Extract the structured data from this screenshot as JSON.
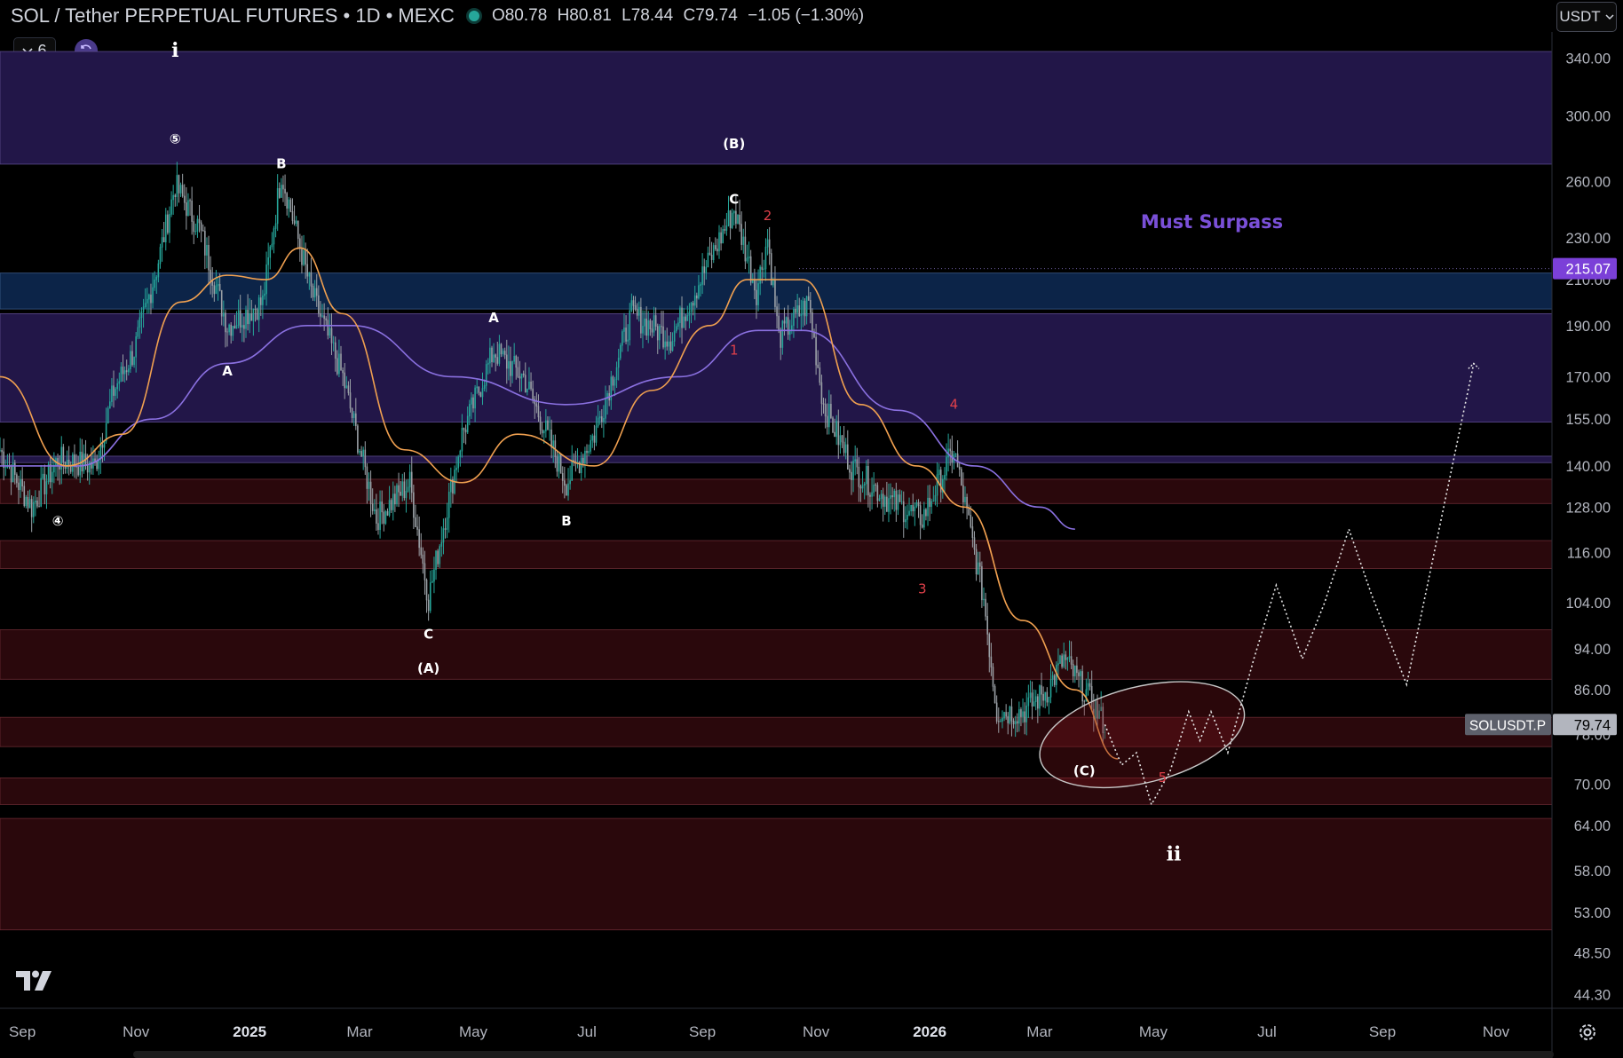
{
  "header": {
    "symbol_title": "SOL / Tether PERPETUAL FUTURES • 1D • MEXC",
    "ohlc": {
      "open": "O80.78",
      "high": "H80.81",
      "low": "L78.44",
      "close": "C79.74",
      "change": "−1.05 (−1.30%)"
    },
    "indicator_count": "6",
    "currency": "USDT"
  },
  "icons": {
    "logo": "tradingview-logo-icon",
    "sync": "sync-icon",
    "settings": "gear-icon",
    "collapse": "chevron-down-icon"
  },
  "colors": {
    "background": "#000000",
    "ma_fast": "#f0a050",
    "ma_slow": "#8a70e0",
    "purple_zone": "#221648",
    "blue_zone": "#0c2448",
    "red_zone": "#2a080c",
    "red_label": "#e0404a",
    "price_tag": "#b2b5be",
    "level_tag": "#7b40d8"
  },
  "chart_data": {
    "type": "candlestick",
    "x_tick_labels": [
      "Sep",
      "Nov",
      "2025",
      "Mar",
      "May",
      "Jul",
      "Sep",
      "Nov",
      "2026",
      "Mar",
      "May",
      "Jul",
      "Sep",
      "Nov"
    ],
    "y_tick_labels": [
      "340.00",
      "300.00",
      "260.00",
      "230.00",
      "210.00",
      "190.00",
      "170.00",
      "155.00",
      "140.00",
      "128.00",
      "116.00",
      "104.00",
      "94.00",
      "86.00",
      "78.00",
      "70.00",
      "64.00",
      "58.00",
      "53.00",
      "48.50",
      "44.30"
    ],
    "y_scale": "log",
    "ylim": [
      43,
      360
    ],
    "xlim": [
      "2024-08-20",
      "2026-12-01"
    ],
    "current_price": {
      "label": "SOLUSDT.P",
      "value": "79.74"
    },
    "level_marker": {
      "value": "215.07",
      "note": "Must Surpass"
    },
    "price_path": [
      [
        "2024-08-20",
        145
      ],
      [
        "2024-09-06",
        128
      ],
      [
        "2024-09-20",
        142
      ],
      [
        "2024-10-10",
        140
      ],
      [
        "2024-10-20",
        165
      ],
      [
        "2024-10-31",
        180
      ],
      [
        "2024-11-12",
        215
      ],
      [
        "2024-11-22",
        258
      ],
      [
        "2024-12-05",
        235
      ],
      [
        "2024-12-20",
        190
      ],
      [
        "2025-01-08",
        200
      ],
      [
        "2025-01-18",
        265
      ],
      [
        "2025-02-03",
        205
      ],
      [
        "2025-02-20",
        170
      ],
      [
        "2025-03-10",
        125
      ],
      [
        "2025-03-28",
        135
      ],
      [
        "2025-04-07",
        105
      ],
      [
        "2025-04-25",
        150
      ],
      [
        "2025-05-12",
        180
      ],
      [
        "2025-05-28",
        170
      ],
      [
        "2025-06-20",
        135
      ],
      [
        "2025-07-05",
        150
      ],
      [
        "2025-07-25",
        195
      ],
      [
        "2025-08-15",
        185
      ],
      [
        "2025-08-28",
        205
      ],
      [
        "2025-09-18",
        245
      ],
      [
        "2025-09-30",
        205
      ],
      [
        "2025-10-06",
        230
      ],
      [
        "2025-10-12",
        185
      ],
      [
        "2025-10-28",
        200
      ],
      [
        "2025-11-05",
        160
      ],
      [
        "2025-11-20",
        140
      ],
      [
        "2025-12-10",
        130
      ],
      [
        "2025-12-28",
        125
      ],
      [
        "2026-01-14",
        145
      ],
      [
        "2026-01-30",
        105
      ],
      [
        "2026-02-06",
        82
      ],
      [
        "2026-02-20",
        82
      ],
      [
        "2026-03-05",
        86
      ],
      [
        "2026-03-14",
        92
      ],
      [
        "2026-03-25",
        86
      ],
      [
        "2026-04-05",
        79.74
      ]
    ],
    "projection_path": [
      [
        "2026-04-05",
        79.74
      ],
      [
        "2026-04-14",
        73
      ],
      [
        "2026-04-22",
        75
      ],
      [
        "2026-04-30",
        67
      ],
      [
        "2026-05-10",
        72
      ],
      [
        "2026-05-20",
        82
      ],
      [
        "2026-05-26",
        77
      ],
      [
        "2026-06-01",
        82
      ],
      [
        "2026-06-10",
        75
      ],
      [
        "2026-06-24",
        92
      ],
      [
        "2026-07-06",
        108
      ],
      [
        "2026-07-20",
        92
      ],
      [
        "2026-08-01",
        104
      ],
      [
        "2026-08-14",
        122
      ],
      [
        "2026-08-26",
        106
      ],
      [
        "2026-09-14",
        87
      ],
      [
        "2026-10-20",
        175
      ]
    ],
    "ma_fast": [
      [
        "2024-08-20",
        170
      ],
      [
        "2024-09-25",
        140
      ],
      [
        "2024-10-25",
        150
      ],
      [
        "2024-11-25",
        200
      ],
      [
        "2024-12-20",
        212
      ],
      [
        "2025-01-10",
        210
      ],
      [
        "2025-01-28",
        225
      ],
      [
        "2025-02-20",
        195
      ],
      [
        "2025-03-25",
        145
      ],
      [
        "2025-04-25",
        135
      ],
      [
        "2025-05-25",
        150
      ],
      [
        "2025-07-05",
        140
      ],
      [
        "2025-08-05",
        165
      ],
      [
        "2025-09-05",
        190
      ],
      [
        "2025-09-25",
        210
      ],
      [
        "2025-10-25",
        210
      ],
      [
        "2025-11-25",
        160
      ],
      [
        "2025-12-25",
        140
      ],
      [
        "2026-01-20",
        128
      ],
      [
        "2026-02-20",
        100
      ],
      [
        "2026-03-20",
        86
      ],
      [
        "2026-04-12",
        74
      ]
    ],
    "ma_slow": [
      [
        "2024-08-20",
        140
      ],
      [
        "2024-10-01",
        140
      ],
      [
        "2024-11-10",
        155
      ],
      [
        "2024-12-20",
        175
      ],
      [
        "2025-02-01",
        190
      ],
      [
        "2025-02-25",
        190
      ],
      [
        "2025-04-20",
        170
      ],
      [
        "2025-06-20",
        160
      ],
      [
        "2025-08-20",
        170
      ],
      [
        "2025-10-01",
        188
      ],
      [
        "2025-10-25",
        188
      ],
      [
        "2025-12-15",
        158
      ],
      [
        "2026-01-25",
        140
      ],
      [
        "2026-03-01",
        128
      ],
      [
        "2026-03-20",
        122
      ]
    ],
    "zones": [
      {
        "kind": "purple",
        "from": 270,
        "to": 345
      },
      {
        "kind": "blue",
        "from": 197,
        "to": 213
      },
      {
        "kind": "purple",
        "from": 154,
        "to": 195
      },
      {
        "kind": "purple",
        "from": 141,
        "to": 143
      },
      {
        "kind": "red",
        "from": 129,
        "to": 136
      },
      {
        "kind": "red",
        "from": 112,
        "to": 119
      },
      {
        "kind": "red",
        "from": 88,
        "to": 98
      },
      {
        "kind": "red",
        "from": 76,
        "to": 81
      },
      {
        "kind": "red",
        "from": 67,
        "to": 71
      },
      {
        "kind": "red",
        "from": 51,
        "to": 65
      }
    ],
    "annotations": [
      {
        "text": "i",
        "date": "2024-11-22",
        "price": 345,
        "style": "roman"
      },
      {
        "text": "⑤",
        "date": "2024-11-22",
        "price": 285,
        "style": "white"
      },
      {
        "text": "B",
        "date": "2025-01-18",
        "price": 270,
        "style": "white"
      },
      {
        "text": "A",
        "date": "2024-12-20",
        "price": 172,
        "style": "white"
      },
      {
        "text": "④",
        "date": "2024-09-20",
        "price": 124,
        "style": "white"
      },
      {
        "text": "C",
        "date": "2025-04-07",
        "price": 97,
        "style": "white"
      },
      {
        "text": "(A)",
        "date": "2025-04-07",
        "price": 90,
        "style": "white"
      },
      {
        "text": "A",
        "date": "2025-05-12",
        "price": 193,
        "style": "white"
      },
      {
        "text": "B",
        "date": "2025-06-20",
        "price": 124,
        "style": "white"
      },
      {
        "text": "(B)",
        "date": "2025-09-18",
        "price": 282,
        "style": "white"
      },
      {
        "text": "C",
        "date": "2025-09-18",
        "price": 250,
        "style": "white"
      },
      {
        "text": "2",
        "date": "2025-10-06",
        "price": 241,
        "style": "red"
      },
      {
        "text": "1",
        "date": "2025-09-18",
        "price": 180,
        "style": "red"
      },
      {
        "text": "3",
        "date": "2025-12-28",
        "price": 107,
        "style": "red"
      },
      {
        "text": "4",
        "date": "2026-01-14",
        "price": 160,
        "style": "red"
      },
      {
        "text": "(C)",
        "date": "2026-03-25",
        "price": 72,
        "style": "white"
      },
      {
        "text": "5",
        "date": "2026-05-06",
        "price": 71,
        "style": "red"
      },
      {
        "text": "ii",
        "date": "2026-05-12",
        "price": 60,
        "style": "roman"
      }
    ],
    "ellipse": {
      "center_date": "2026-04-25",
      "center_price": 78,
      "angle_deg": -14
    }
  }
}
